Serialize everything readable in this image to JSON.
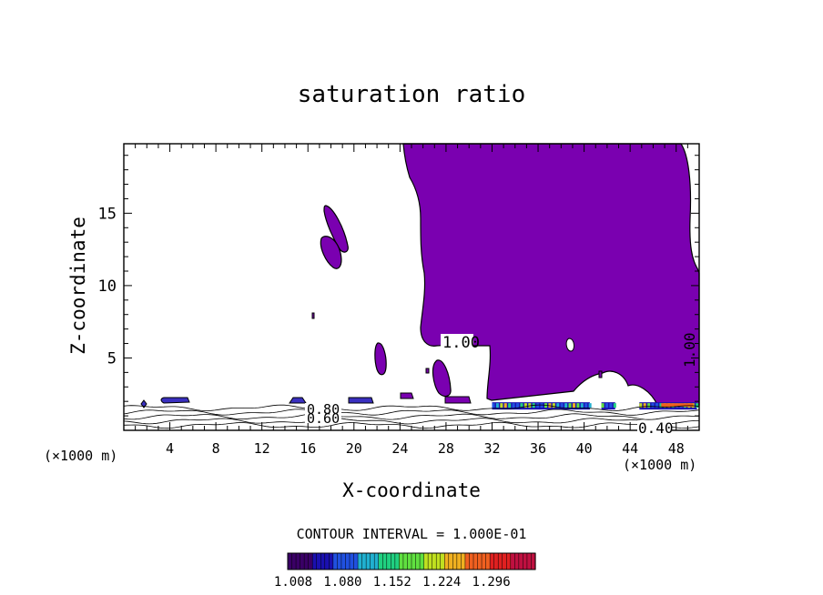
{
  "chart_data": {
    "type": "contour",
    "title": "saturation ratio",
    "xlabel": "X-coordinate",
    "ylabel": "Z-coordinate",
    "x_unit": "(×1000 m)",
    "x_unit_right": "(×1000 m)",
    "xlim": [
      0,
      50
    ],
    "ylim": [
      0,
      19.8
    ],
    "x_ticks": [
      4,
      8,
      12,
      16,
      20,
      24,
      28,
      32,
      36,
      40,
      44,
      48
    ],
    "y_ticks": [
      5,
      10,
      15
    ],
    "contour_interval_text": "CONTOUR INTERVAL = 1.000E-01",
    "contour_labels": [
      {
        "text": "1.00",
        "x": 28.1,
        "z": 5.6
      },
      {
        "text": "1.00",
        "x": 49.0,
        "z": 5.3,
        "rotated": true
      },
      {
        "text": "0.80",
        "x": 17.5,
        "z": 1.4
      },
      {
        "text": "0.60",
        "x": 17.5,
        "z": 0.8
      },
      {
        "text": "0.40",
        "x": 46.2,
        "z": 0.0
      }
    ],
    "colorbar": {
      "ticks": [
        "1.008",
        "1.080",
        "1.152",
        "1.224",
        "1.296"
      ],
      "min": 1.008,
      "max": 1.368,
      "colors": [
        "#3a0066",
        "#1a10b0",
        "#2050e0",
        "#20b0d0",
        "#20d080",
        "#60e040",
        "#c0e020",
        "#f0b020",
        "#f06020",
        "#e02020",
        "#c01040"
      ]
    },
    "fill_color": "#7a00b0",
    "line_color": "#000000"
  }
}
